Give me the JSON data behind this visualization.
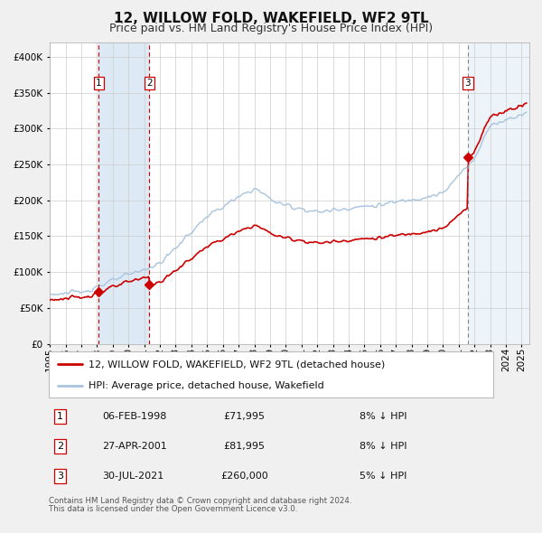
{
  "title": "12, WILLOW FOLD, WAKEFIELD, WF2 9TL",
  "subtitle": "Price paid vs. HM Land Registry's House Price Index (HPI)",
  "legend_line1": "12, WILLOW FOLD, WAKEFIELD, WF2 9TL (detached house)",
  "legend_line2": "HPI: Average price, detached house, Wakefield",
  "footer1": "Contains HM Land Registry data © Crown copyright and database right 2024.",
  "footer2": "This data is licensed under the Open Government Licence v3.0.",
  "transactions": [
    {
      "id": 1,
      "date": "06-FEB-1998",
      "year": 1998.1,
      "price": 71995,
      "pct": "8%",
      "dir": "↓"
    },
    {
      "id": 2,
      "date": "27-APR-2001",
      "year": 2001.33,
      "price": 81995,
      "pct": "8%",
      "dir": "↓"
    },
    {
      "id": 3,
      "date": "30-JUL-2021",
      "year": 2021.58,
      "price": 260000,
      "pct": "5%",
      "dir": "↓"
    }
  ],
  "hpi_color": "#a8c4de",
  "price_color": "#cc0000",
  "shade_color": "#ddeaf5",
  "vline_color": "#cc0000",
  "vline3_color": "#888888",
  "marker_color": "#cc0000",
  "ylim": [
    0,
    420000
  ],
  "yticks": [
    0,
    50000,
    100000,
    150000,
    200000,
    250000,
    300000,
    350000,
    400000
  ],
  "xlim_start": 1995.0,
  "xlim_end": 2025.5,
  "background_color": "#f0f0f0",
  "plot_bg_color": "#ffffff",
  "grid_color": "#cccccc",
  "title_fontsize": 11,
  "subtitle_fontsize": 9,
  "axis_fontsize": 7.5
}
